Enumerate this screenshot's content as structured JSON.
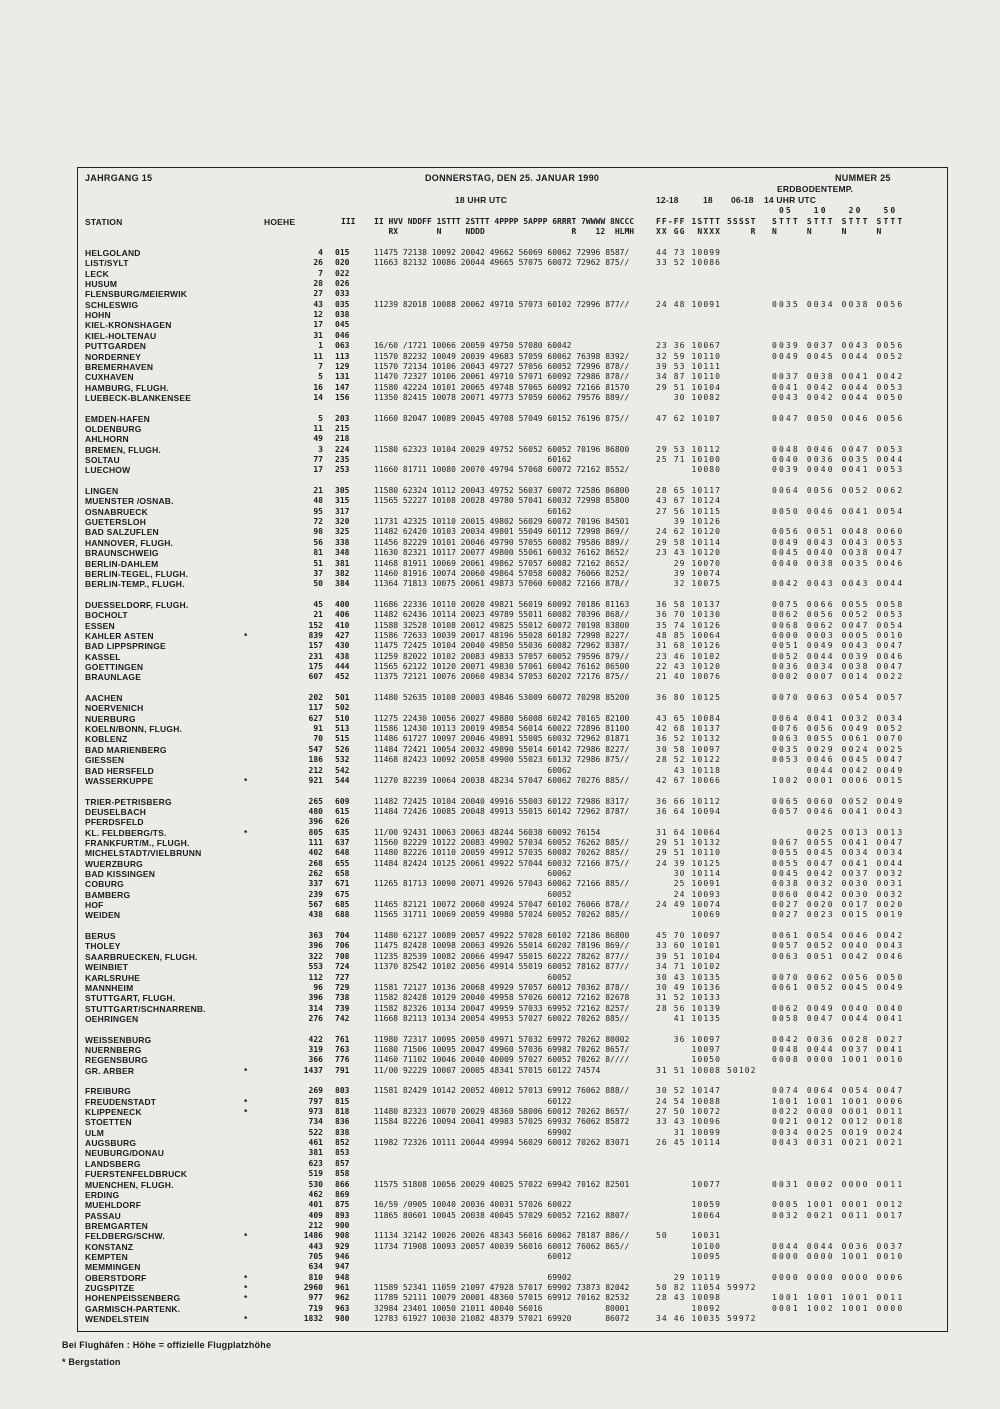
{
  "header": {
    "jahrgang": "JAHRGANG 15",
    "date": "DONNERSTAG, DEN 25. JANUAR 1990",
    "nummer": "NUMMER 25",
    "erdboden": "ERDBODENTEMP.",
    "utc18": "18 UHR UTC",
    "t1218": "12-18",
    "t18": "18",
    "t0618": "06-18",
    "utc14": "14 UHR UTC",
    "station": "STATION",
    "hoehe": "HOEHE",
    "iii": "III",
    "depths": " 05   10   20   50",
    "data_h1": "II HVV NDDFF 1STTT 2STTT 4PPPP 5APPP 6RRRT 7WWWW 8NCCC",
    "data_h2": "   RX        N     NDDD                  R    12  HLMH",
    "mid_h1": "FF-FF 1STTT 5SSST",
    "mid_h2": "XX GG  NXXX     R",
    "temps_h1": "STTT STTT STTT STTT",
    "temps_h2": "N    N    N    N"
  },
  "footer": {
    "line1": "Bei Flughäfen : Höhe = offizielle Flugplatzhöhe",
    "line2": "* Bergstation"
  },
  "rows": [
    {
      "n": "HELGOLAND",
      "h": "4",
      "c": "015",
      "d": "11475 72138 10092 20042 49662 56069 60062 72996 8587/",
      "m": "44 73 10099",
      "e": ""
    },
    {
      "n": "LIST/SYLT",
      "h": "26",
      "c": "020",
      "d": "11663 82132 10086 20044 49665 57075 60072 72962 875//",
      "m": "33 52 10086",
      "e": ""
    },
    {
      "n": "LECK",
      "h": "7",
      "c": "022"
    },
    {
      "n": "HUSUM",
      "h": "28",
      "c": "026"
    },
    {
      "n": "FLENSBURG/MEIERWIK",
      "h": "27",
      "c": "033"
    },
    {
      "n": "SCHLESWIG",
      "h": "43",
      "c": "035",
      "d": "11239 82018 10088 20062 49710 57073 60102 72996 877//",
      "m": "24 48 10091",
      "e": "0035 0034 0038 0056"
    },
    {
      "n": "HOHN",
      "h": "12",
      "c": "038"
    },
    {
      "n": "KIEL-KRONSHAGEN",
      "h": "17",
      "c": "045"
    },
    {
      "n": "KIEL-HOLTENAU",
      "h": "31",
      "c": "046"
    },
    {
      "n": "PUTTGARDEN",
      "h": "1",
      "c": "063",
      "d": "16/60 /1721 10066 20059 49750 57080 60042",
      "m": "23 36 10067",
      "e": "0039 0037 0043 0056"
    },
    {
      "n": "NORDERNEY",
      "h": "11",
      "c": "113",
      "d": "11570 82232 10049 20039 49683 57059 60062 76398 8392/",
      "m": "32 59 10110",
      "e": "0049 0045 0044 0052"
    },
    {
      "n": "BREMERHAVEN",
      "h": "7",
      "c": "129",
      "d": "11570 72134 10106 20043 49727 57056 60052 72996 878//",
      "m": "39 53 10111",
      "e": ""
    },
    {
      "n": "CUXHAVEN",
      "h": "5",
      "c": "131",
      "d": "11470 72327 10106 20061 49710 57071 60092 72986 878//",
      "m": "34 87 10110",
      "e": "0037 0038 0041 0042"
    },
    {
      "n": "HAMBURG, FLUGH.",
      "h": "16",
      "c": "147",
      "d": "11580 42224 10101 20065 49748 57065 60092 72166 81570",
      "m": "29 51 10104",
      "e": "0041 0042 0044 0053"
    },
    {
      "n": "LUEBECK-BLANKENSEE",
      "h": "14",
      "c": "156",
      "d": "11350 82415 10078 20071 49773 57059 60062 79576 889//",
      "m": "   30 10082",
      "e": "0043 0042 0044 0050"
    },
    {
      "gap": true
    },
    {
      "n": "EMDEN-HAFEN",
      "h": "5",
      "c": "203",
      "d": "11660 82047 10089 20045 49708 57049 60152 76196 875//",
      "m": "47 62 10107",
      "e": "0047 0050 0046 0056"
    },
    {
      "n": "OLDENBURG",
      "h": "11",
      "c": "215"
    },
    {
      "n": "AHLHORN",
      "h": "49",
      "c": "218"
    },
    {
      "n": "BREMEN, FLUGH.",
      "h": "3",
      "c": "224",
      "d": "11580 62323 10104 20029 49752 56052 60052 70196 86800",
      "m": "29 53 10112",
      "e": "0048 0046 0047 0053"
    },
    {
      "n": "SOLTAU",
      "h": "77",
      "c": "235",
      "d": "                                    60162",
      "m": "25 71 10100",
      "e": "0040 0036 0035 0044"
    },
    {
      "n": "LUECHOW",
      "h": "17",
      "c": "253",
      "d": "11660 81711 10080 20070 49794 57068 60072 72162 8552/",
      "m": "      10080",
      "e": "0039 0040 0041 0053"
    },
    {
      "gap": true
    },
    {
      "n": "LINGEN",
      "h": "21",
      "c": "305",
      "d": "11580 62324 10112 20043 49752 56037 60072 72586 86800",
      "m": "28 65 10117",
      "e": "0064 0056 0052 0062"
    },
    {
      "n": "MUENSTER /OSNAB.",
      "h": "48",
      "c": "315",
      "d": "11565 52227 10108 20028 49780 57041 60032 72998 85800",
      "m": "43 67 10124",
      "e": ""
    },
    {
      "n": "OSNABRUECK",
      "h": "95",
      "c": "317",
      "d": "                                    60162",
      "m": "27 56 10115",
      "e": "0050 0046 0041 0054"
    },
    {
      "n": "GUETERSLOH",
      "h": "72",
      "c": "320",
      "d": "11731 42325 10110 20015 49802 56029 60072 70196 84501",
      "m": "   39 10126",
      "e": ""
    },
    {
      "n": "BAD SALZUFLEN",
      "h": "98",
      "c": "325",
      "d": "11482 62420 10103 20034 49801 55049 60112 72998 869//",
      "m": "24 62 10120",
      "e": "0056 0051 0048 0060"
    },
    {
      "n": "HANNOVER, FLUGH.",
      "h": "56",
      "c": "338",
      "d": "11456 82229 10101 20046 49790 57055 60082 79586 889//",
      "m": "29 58 10114",
      "e": "0049 0043 0043 0053"
    },
    {
      "n": "BRAUNSCHWEIG",
      "h": "81",
      "c": "348",
      "d": "11630 82321 10117 20077 49800 55061 60032 76162 8652/",
      "m": "23 43 10120",
      "e": "0045 0040 0038 0047"
    },
    {
      "n": "BERLIN-DAHLEM",
      "h": "51",
      "c": "381",
      "d": "11468 81911 10069 20061 49862 57057 60082 72162 8652/",
      "m": "   29 10070",
      "e": "0040 0038 0035 0046"
    },
    {
      "n": "BERLIN-TEGEL, FLUGH.",
      "h": "37",
      "c": "382",
      "d": "11460 81916 10074 20060 49864 57058 60082 76066 8252/",
      "m": "   39 10074",
      "e": ""
    },
    {
      "n": "BERLIN-TEMP., FLUGH.",
      "h": "50",
      "c": "384",
      "d": "11364 71813 10075 20061 49873 57060 60082 72166 878//",
      "m": "   32 10075",
      "e": "0042 0043 0043 0044"
    },
    {
      "gap": true
    },
    {
      "n": "DUESSELDORF, FLUGH.",
      "h": "45",
      "c": "400",
      "d": "11686 22336 10110 20020 49821 56019 60092 70186 81163",
      "m": "36 58 10137",
      "e": "0075 0066 0055 0058"
    },
    {
      "n": "BOCHOLT",
      "h": "21",
      "c": "406",
      "d": "11482 62436 10114 20023 49789 55011 60082 70396 868//",
      "m": "36 70 10130",
      "e": "0062 0056 0052 0053"
    },
    {
      "n": "ESSEN",
      "h": "152",
      "c": "410",
      "d": "11588 32528 10108 20012 49825 55012 60072 70198 83800",
      "m": "35 74 10126",
      "e": "0068 0062 0047 0054"
    },
    {
      "n": "KAHLER ASTEN",
      "st": "*",
      "h": "839",
      "c": "427",
      "d": "11586 72633 10039 20017 48196 55028 60182 72998 8227/",
      "m": "48 85 10064",
      "e": "0000 0003 0005 0010"
    },
    {
      "n": "BAD LIPPSPRINGE",
      "h": "157",
      "c": "430",
      "d": "11475 72425 10104 20040 49850 55036 60082 72962 8387/",
      "m": "31 68 10126",
      "e": "0051 0049 0043 0047"
    },
    {
      "n": "KASSEL",
      "h": "231",
      "c": "438",
      "d": "11259 82022 10102 20083 49833 57057 60052 79596 879//",
      "m": "23 46 10102",
      "e": "0052 0044 0039 0046"
    },
    {
      "n": "GOETTINGEN",
      "h": "175",
      "c": "444",
      "d": "11565 62122 10120 20071 49830 57061 60042 76162 86500",
      "m": "22 43 10120",
      "e": "0036 0034 0038 0047"
    },
    {
      "n": "BRAUNLAGE",
      "h": "607",
      "c": "452",
      "d": "11375 72121 10076 20060 49834 57053 60202 72176 875//",
      "m": "21 40 10076",
      "e": "0002 0007 0014 0022"
    },
    {
      "gap": true
    },
    {
      "n": "AACHEN",
      "h": "202",
      "c": "501",
      "d": "11480 52635 10108 20003 49846 53009 60072 70298 85200",
      "m": "36 80 10125",
      "e": "0070 0063 0054 0057"
    },
    {
      "n": "NOERVENICH",
      "h": "117",
      "c": "502"
    },
    {
      "n": "NUERBURG",
      "h": "627",
      "c": "510",
      "d": "11275 22430 10056 20027 49880 56008 60242 70165 82100",
      "m": "43 65 10084",
      "e": "0064 0041 0032 0034"
    },
    {
      "n": "KOELN/BONN, FLUGH.",
      "h": "91",
      "c": "513",
      "d": "11586 12430 10113 20019 49854 56014 60022 72896 81100",
      "m": "42 68 10137",
      "e": "0076 0056 0049 0052"
    },
    {
      "n": "KOBLENZ",
      "h": "70",
      "c": "515",
      "d": "11486 61727 10097 20046 49891 55005 60032 72962 81871",
      "m": "36 52 10132",
      "e": "0063 0055 0061 0070"
    },
    {
      "n": "BAD MARIENBERG",
      "h": "547",
      "c": "526",
      "d": "11484 72421 10054 20032 49890 55014 60142 72986 8227/",
      "m": "30 58 10097",
      "e": "0035 0029 0024 0025"
    },
    {
      "n": "GIESSEN",
      "h": "186",
      "c": "532",
      "d": "11468 82423 10092 20058 49900 55023 60132 72986 875//",
      "m": "28 52 10122",
      "e": "0053 0046 0045 0047"
    },
    {
      "n": "BAD HERSFELD",
      "h": "212",
      "c": "542",
      "d": "                                    60062",
      "m": "   43 10118",
      "e": "     0044 0042 0049"
    },
    {
      "n": "WASSERKUPPE",
      "st": "*",
      "h": "921",
      "c": "544",
      "d": "11270 82239 10064 20038 48234 57047 60062 70276 885//",
      "m": "42 67 10066",
      "e": "1002 0001 0006 0015"
    },
    {
      "gap": true
    },
    {
      "n": "TRIER-PETRISBERG",
      "h": "265",
      "c": "609",
      "d": "11482 72425 10104 20040 49916 55003 60122 72986 8317/",
      "m": "36 66 10112",
      "e": "0065 0060 0052 0049"
    },
    {
      "n": "DEUSELBACH",
      "h": "480",
      "c": "615",
      "d": "11484 72426 10085 20048 49913 55015 60142 72962 8787/",
      "m": "36 64 10094",
      "e": "0057 0046 0041 0043"
    },
    {
      "n": "PFERDSFELD",
      "h": "396",
      "c": "626"
    },
    {
      "n": "KL. FELDBERG/TS.",
      "st": "*",
      "h": "805",
      "c": "635",
      "d": "11/00 92431 10063 20063 48244 56038 60092 76154",
      "m": "31 64 10064",
      "e": "     0025 0013 0013"
    },
    {
      "n": "FRANKFURT/M., FLUGH.",
      "h": "111",
      "c": "637",
      "d": "11560 82229 10122 20083 49902 57034 60052 76262 885//",
      "m": "29 51 10132",
      "e": "0067 0055 0041 0047"
    },
    {
      "n": "MICHELSTADT/VIELBRUNN",
      "h": "402",
      "c": "648",
      "d": "11480 82226 10110 20059 49912 57035 60082 70262 885//",
      "m": "29 51 10110",
      "e": "0055 0045 0034 0034"
    },
    {
      "n": "WUERZBURG",
      "h": "268",
      "c": "655",
      "d": "11484 82424 10125 20061 49922 57044 60032 72166 875//",
      "m": "24 39 10125",
      "e": "0055 0047 0041 0044"
    },
    {
      "n": "BAD KISSINGEN",
      "h": "262",
      "c": "658",
      "d": "                                    60062",
      "m": "   30 10114",
      "e": "0045 0042 0037 0032"
    },
    {
      "n": "COBURG",
      "h": "337",
      "c": "671",
      "d": "11265 81713 10090 20071 49926 57043 60062 72166 885//",
      "m": "   25 10091",
      "e": "0038 0032 0030 0031"
    },
    {
      "n": "BAMBERG",
      "h": "239",
      "c": "675",
      "d": "                                    60052",
      "m": "   24 10093",
      "e": "0060 0042 0030 0032"
    },
    {
      "n": "HOF",
      "h": "567",
      "c": "685",
      "d": "11465 82121 10072 20060 49924 57047 60102 76066 878//",
      "m": "24 49 10074",
      "e": "0027 0020 0017 0020"
    },
    {
      "n": "WEIDEN",
      "h": "438",
      "c": "688",
      "d": "11565 31711 10069 20059 49980 57024 60052 70262 885//",
      "m": "      10069",
      "e": "0027 0023 0015 0019"
    },
    {
      "gap": true
    },
    {
      "n": "BERUS",
      "h": "363",
      "c": "704",
      "d": "11480 62127 10089 20057 49922 57028 60102 72186 86800",
      "m": "45 70 10097",
      "e": "0061 0054 0046 0042"
    },
    {
      "n": "THOLEY",
      "h": "396",
      "c": "706",
      "d": "11475 82428 10098 20063 49926 55014 60202 78196 869//",
      "m": "33 60 10101",
      "e": "0057 0052 0040 0043"
    },
    {
      "n": "SAARBRUECKEN, FLUGH.",
      "h": "322",
      "c": "708",
      "d": "11235 82539 10082 20066 49947 55015 60222 78262 877//",
      "m": "39 51 10104",
      "e": "0063 0051 0042 0046"
    },
    {
      "n": "WEINBIET",
      "h": "553",
      "c": "724",
      "d": "11370 82542 10102 20056 49914 55019 60052 78162 877//",
      "m": "34 71 10102",
      "e": ""
    },
    {
      "n": "KARLSRUHE",
      "h": "112",
      "c": "727",
      "d": "                                    60052",
      "m": "30 43 10135",
      "e": "0070 0062 0056 0050"
    },
    {
      "n": "MANNHEIM",
      "h": "96",
      "c": "729",
      "d": "11581 72127 10136 20068 49929 57057 60012 70362 878//",
      "m": "30 49 10136",
      "e": "0061 0052 0045 0049"
    },
    {
      "n": "STUTTGART, FLUGH.",
      "h": "396",
      "c": "738",
      "d": "11582 82428 10129 20040 49958 57026 60012 72162 82678",
      "m": "31 52 10133",
      "e": ""
    },
    {
      "n": "STUTTGART/SCHNARRENB.",
      "h": "314",
      "c": "739",
      "d": "11582 82326 10134 20047 49959 57033 69952 72162 8257/",
      "m": "28 56 10139",
      "e": "0062 0049 0040 0040"
    },
    {
      "n": "OEHRINGEN",
      "h": "276",
      "c": "742",
      "d": "11668 82113 10134 20054 49953 57027 60022 70262 885//",
      "m": "   41 10135",
      "e": "0058 0047 0044 0041"
    },
    {
      "gap": true
    },
    {
      "n": "WEISSENBURG",
      "h": "422",
      "c": "761",
      "d": "11980 72317 10095 20050 49971 57032 69972 70262 80002",
      "m": "   36 10097",
      "e": "0042 0036 0028 0027"
    },
    {
      "n": "NUERNBERG",
      "h": "319",
      "c": "763",
      "d": "11680 71506 10095 20047 49960 57036 69982 70262 8657/",
      "m": "      10097",
      "e": "0048 0044 0037 0041"
    },
    {
      "n": "REGENSBURG",
      "h": "366",
      "c": "776",
      "d": "11460 71102 10046 20040 40009 57027 60052 70262 8////",
      "m": "      10050",
      "e": "0008 0000 1001 0010"
    },
    {
      "n": "GR. ARBER",
      "st": "*",
      "h": "1437",
      "c": "791",
      "d": "11/00 92229 10007 20005 48341 57015 60122 74574",
      "m": "31 51 10008 50102",
      "e": ""
    },
    {
      "gap": true
    },
    {
      "n": "FREIBURG",
      "h": "269",
      "c": "803",
      "d": "11581 82429 10142 20052 40012 57013 69912 76062 888//",
      "m": "30 52 10147",
      "e": "0074 0064 0054 0047"
    },
    {
      "n": "FREUDENSTADT",
      "st": "*",
      "h": "797",
      "c": "815",
      "d": "                                    60122",
      "m": "24 54 10088",
      "e": "1001 1001 1001 0006"
    },
    {
      "n": "KLIPPENECK",
      "st": "*",
      "h": "973",
      "c": "818",
      "d": "11480 82323 10070 20029 48360 58006 60012 70262 8657/",
      "m": "27 50 10072",
      "e": "0022 0000 0001 0011"
    },
    {
      "n": "STOETTEN",
      "h": "734",
      "c": "836",
      "d": "11584 82226 10094 20041 49983 57025 69932 76062 85872",
      "m": "33 43 10096",
      "e": "0021 0012 0012 0018"
    },
    {
      "n": "ULM",
      "h": "522",
      "c": "838",
      "d": "                                    69902",
      "m": "   31 10099",
      "e": "0034 0025 0019 0024"
    },
    {
      "n": "AUGSBURG",
      "h": "461",
      "c": "852",
      "d": "11982 72326 10111 20044 49994 56029 60012 70262 83071",
      "m": "26 45 10114",
      "e": "0043 0031 0021 0021"
    },
    {
      "n": "NEUBURG/DONAU",
      "h": "381",
      "c": "853"
    },
    {
      "n": "LANDSBERG",
      "h": "623",
      "c": "857"
    },
    {
      "n": "FUERSTENFELDBRUCK",
      "h": "519",
      "c": "858"
    },
    {
      "n": "MUENCHEN, FLUGH.",
      "h": "530",
      "c": "866",
      "d": "11575 51808 10056 20029 40025 57022 69942 70162 82501",
      "m": "      10077",
      "e": "0031 0002 0000 0011"
    },
    {
      "n": "ERDING",
      "h": "462",
      "c": "869"
    },
    {
      "n": "MUEHLDORF",
      "h": "401",
      "c": "875",
      "d": "16/59 /0905 10040 20036 40031 57026 60022",
      "m": "      10059",
      "e": "0005 1001 0001 0012"
    },
    {
      "n": "PASSAU",
      "h": "409",
      "c": "893",
      "d": "11865 80601 10045 20038 40045 57029 60052 72162 8807/",
      "m": "      10064",
      "e": "0032 0021 0011 0017"
    },
    {
      "n": "BREMGARTEN",
      "h": "212",
      "c": "900"
    },
    {
      "n": "FELDBERG/SCHW.",
      "st": "*",
      "h": "1486",
      "c": "908",
      "d": "11134 32142 10026 20026 48343 56016 60062 78187 886//",
      "m": "50    10031",
      "e": ""
    },
    {
      "n": "KONSTANZ",
      "h": "443",
      "c": "929",
      "d": "11734 71908 10093 20057 40039 56016 60012 76062 865//",
      "m": "      10100",
      "e": "0044 0044 0036 0037"
    },
    {
      "n": "KEMPTEN",
      "h": "705",
      "c": "946",
      "d": "                                    60012",
      "m": "      10095",
      "e": "0000 0000 1001 0010"
    },
    {
      "n": "MEMMINGEN",
      "h": "634",
      "c": "947"
    },
    {
      "n": "OBERSTDORF",
      "st": "*",
      "h": "810",
      "c": "948",
      "d": "                                    69902",
      "m": "   29 10119",
      "e": "0000 0000 0000 0006"
    },
    {
      "n": "ZUGSPITZE",
      "st": "*",
      "h": "2960",
      "c": "961",
      "d": "11589 52341 11059 21097 47928 57017 69902 73873 82042",
      "m": "50 82 11054 59972",
      "e": ""
    },
    {
      "n": "HOHENPEISSENBERG",
      "st": "*",
      "h": "977",
      "c": "962",
      "d": "11789 52111 10079 20001 48360 57015 69912 70162 82532",
      "m": "28 43 10098",
      "e": "1001 1001 1001 0011"
    },
    {
      "n": "GARMISCH-PARTENK.",
      "h": "719",
      "c": "963",
      "d": "32984 23401 10050 21011 40040 56016             80001",
      "m": "      10092",
      "e": "0001 1002 1001 0000"
    },
    {
      "n": "WENDELSTEIN",
      "st": "*",
      "h": "1832",
      "c": "980",
      "d": "12783 61927 10030 21082 48379 57021 69920       86072",
      "m": "34 46 10035 59972",
      "e": ""
    }
  ]
}
